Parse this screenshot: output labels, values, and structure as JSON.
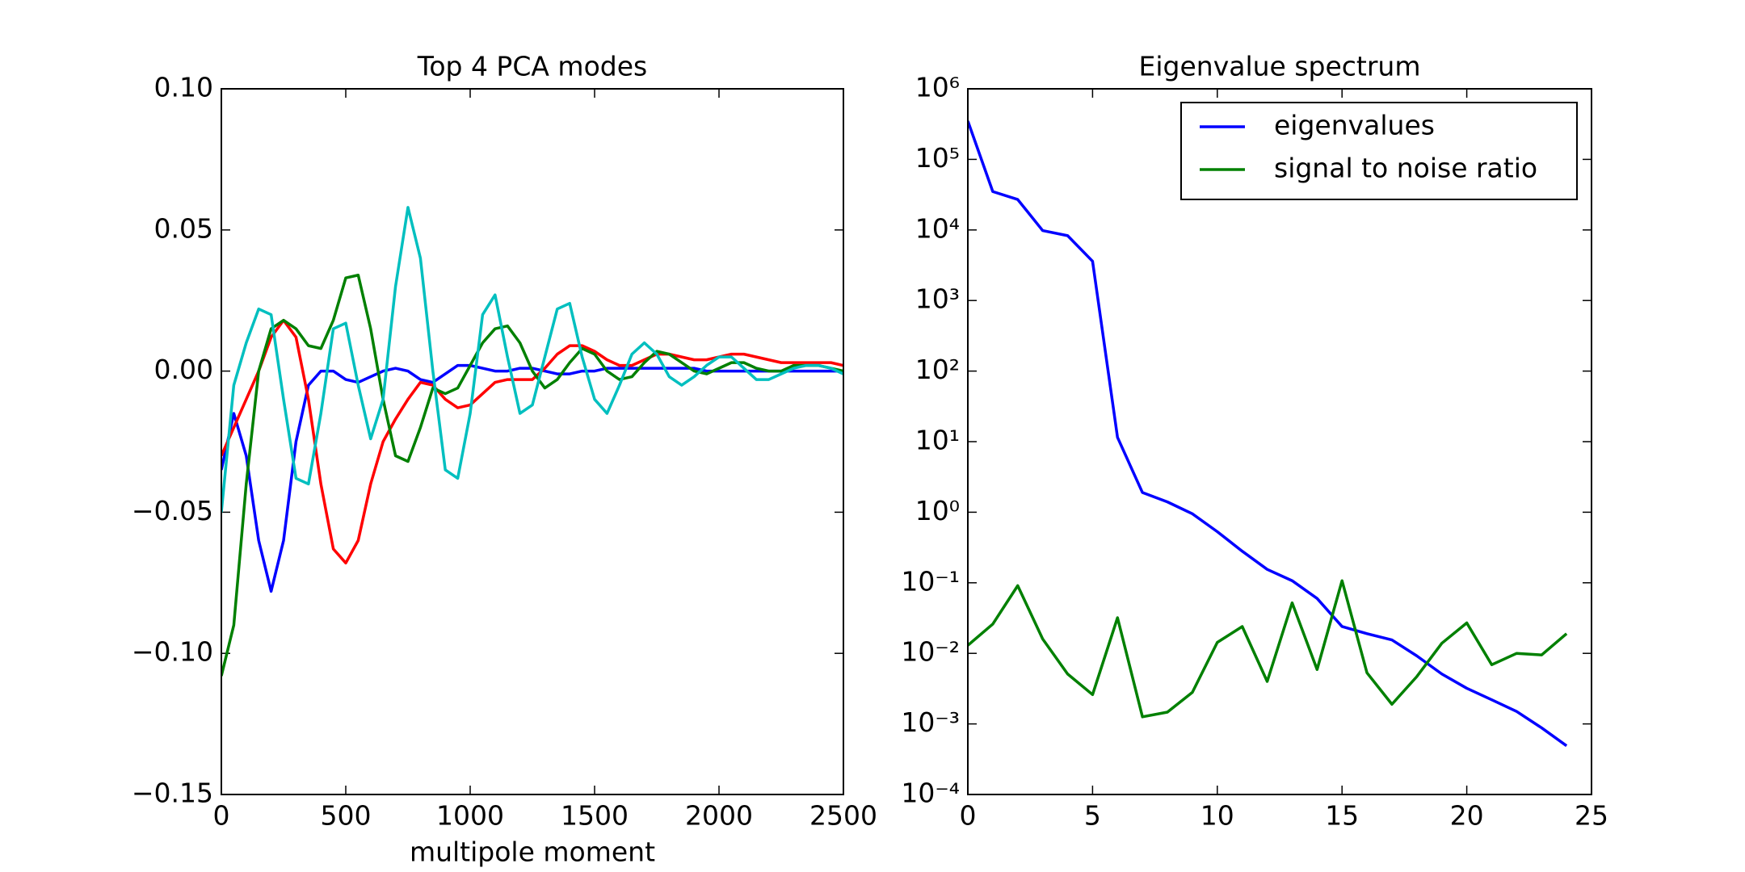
{
  "chart_data": [
    {
      "type": "line",
      "title": "Top 4 PCA modes",
      "x_label": "multipole moment",
      "x": [
        0,
        50,
        100,
        150,
        200,
        250,
        300,
        350,
        400,
        450,
        500,
        550,
        600,
        650,
        700,
        750,
        800,
        850,
        900,
        950,
        1000,
        1050,
        1100,
        1150,
        1200,
        1250,
        1300,
        1350,
        1400,
        1450,
        1500,
        1550,
        1600,
        1650,
        1700,
        1750,
        1800,
        1850,
        1900,
        1950,
        2000,
        2050,
        2100,
        2150,
        2200,
        2250,
        2300,
        2350,
        2400,
        2450,
        2500
      ],
      "series": [
        {
          "color": "#0000ff",
          "values": [
            -0.035,
            -0.015,
            -0.03,
            -0.06,
            -0.078,
            -0.06,
            -0.025,
            -0.005,
            0,
            0,
            -0.003,
            -0.004,
            -0.002,
            0,
            0.001,
            0,
            -0.003,
            -0.004,
            -0.001,
            0.002,
            0.002,
            0.001,
            0,
            0,
            0.001,
            0.001,
            0,
            -0.001,
            -0.001,
            0,
            0,
            0.001,
            0.001,
            0.001,
            0.001,
            0.001,
            0.001,
            0.001,
            0.001,
            0,
            0,
            0,
            0,
            0,
            0,
            0,
            0,
            0,
            0,
            0,
            0
          ]
        },
        {
          "color": "#ff0000",
          "values": [
            -0.03,
            -0.02,
            -0.01,
            0,
            0.012,
            0.018,
            0.012,
            -0.01,
            -0.04,
            -0.063,
            -0.068,
            -0.06,
            -0.04,
            -0.025,
            -0.017,
            -0.01,
            -0.004,
            -0.005,
            -0.01,
            -0.013,
            -0.012,
            -0.008,
            -0.004,
            -0.003,
            -0.003,
            -0.003,
            0.001,
            0.006,
            0.009,
            0.009,
            0.007,
            0.004,
            0.002,
            0.002,
            0.004,
            0.006,
            0.006,
            0.005,
            0.004,
            0.004,
            0.005,
            0.006,
            0.006,
            0.005,
            0.004,
            0.003,
            0.003,
            0.003,
            0.003,
            0.003,
            0.002
          ]
        },
        {
          "color": "#008000",
          "values": [
            -0.108,
            -0.09,
            -0.04,
            0,
            0.015,
            0.018,
            0.015,
            0.009,
            0.008,
            0.018,
            0.033,
            0.034,
            0.015,
            -0.01,
            -0.03,
            -0.032,
            -0.02,
            -0.006,
            -0.008,
            -0.006,
            0.002,
            0.01,
            0.015,
            0.016,
            0.01,
            0,
            -0.006,
            -0.003,
            0.003,
            0.008,
            0.006,
            0,
            -0.003,
            -0.002,
            0.003,
            0.007,
            0.006,
            0.003,
            0,
            -0.001,
            0.001,
            0.003,
            0.003,
            0.001,
            0,
            0,
            0.002,
            0.002,
            0.002,
            0.001,
            0
          ]
        },
        {
          "color": "#00bfbf",
          "values": [
            -0.05,
            -0.005,
            0.01,
            0.022,
            0.02,
            -0.01,
            -0.038,
            -0.04,
            -0.015,
            0.015,
            0.017,
            -0.005,
            -0.024,
            -0.01,
            0.03,
            0.058,
            0.04,
            0,
            -0.035,
            -0.038,
            -0.015,
            0.02,
            0.027,
            0.005,
            -0.015,
            -0.012,
            0.005,
            0.022,
            0.024,
            0.005,
            -0.01,
            -0.015,
            -0.005,
            0.006,
            0.01,
            0.006,
            -0.002,
            -0.005,
            -0.002,
            0.002,
            0.005,
            0.005,
            0.001,
            -0.003,
            -0.003,
            -0.001,
            0.001,
            0.002,
            0.002,
            0.001,
            -0.001
          ]
        }
      ],
      "xlim": [
        0,
        2500
      ],
      "xticks": [
        0,
        500,
        1000,
        1500,
        2000,
        2500
      ],
      "ylim": [
        -0.15,
        0.1
      ],
      "yticks": [
        {
          "value": -0.15,
          "label": "−0.15"
        },
        {
          "value": -0.1,
          "label": "−0.10"
        },
        {
          "value": -0.05,
          "label": "−0.05"
        },
        {
          "value": 0,
          "label": "0.00"
        },
        {
          "value": 0.05,
          "label": "0.05"
        },
        {
          "value": 0.1,
          "label": "0.10"
        }
      ]
    },
    {
      "type": "line",
      "title": "Eigenvalue spectrum",
      "yscale": "log",
      "legend": "upper right",
      "x": [
        0,
        1,
        2,
        3,
        4,
        5,
        6,
        7,
        8,
        9,
        10,
        11,
        12,
        13,
        14,
        15,
        16,
        17,
        18,
        19,
        20,
        21,
        22,
        23,
        24
      ],
      "series": [
        {
          "name": "eigenvalues",
          "color": "#0000ff",
          "values": [
            350000,
            35000,
            27000,
            9800,
            8300,
            3600,
            11.5,
            1.9,
            1.4,
            0.95,
            0.53,
            0.28,
            0.155,
            0.107,
            0.06,
            0.024,
            0.019,
            0.0155,
            0.0092,
            0.0051,
            0.0032,
            0.0022,
            0.0015,
            0.00088,
            0.00049
          ]
        },
        {
          "name": "signal to noise ratio",
          "color": "#008000",
          "values": [
            0.013,
            0.026,
            0.091,
            0.016,
            0.0051,
            0.0026,
            0.032,
            0.00126,
            0.00147,
            0.0028,
            0.0143,
            0.024,
            0.004,
            0.052,
            0.0059,
            0.107,
            0.0053,
            0.0019,
            0.0047,
            0.0139,
            0.027,
            0.0069,
            0.01,
            0.0095,
            0.019
          ]
        }
      ],
      "xlim": [
        0,
        25
      ],
      "xticks": [
        0,
        5,
        10,
        15,
        20,
        25
      ],
      "ylim": [
        0.0001,
        1000000
      ],
      "yticks": [
        {
          "value": 0.0001,
          "label": "10⁻⁴"
        },
        {
          "value": 0.001,
          "label": "10⁻³"
        },
        {
          "value": 0.01,
          "label": "10⁻²"
        },
        {
          "value": 0.1,
          "label": "10⁻¹"
        },
        {
          "value": 1,
          "label": "10⁰"
        },
        {
          "value": 10,
          "label": "10¹"
        },
        {
          "value": 100,
          "label": "10²"
        },
        {
          "value": 1000,
          "label": "10³"
        },
        {
          "value": 10000,
          "label": "10⁴"
        },
        {
          "value": 100000,
          "label": "10⁵"
        },
        {
          "value": 1000000,
          "label": "10⁶"
        }
      ]
    }
  ]
}
